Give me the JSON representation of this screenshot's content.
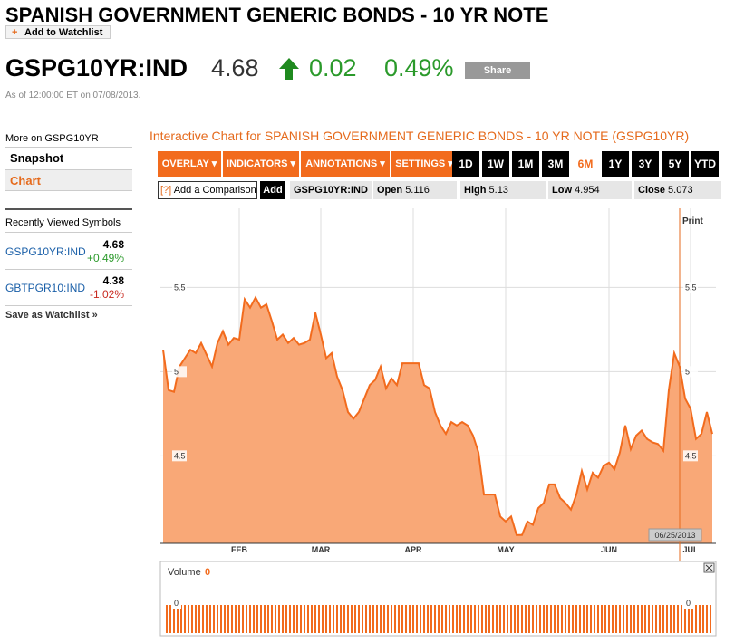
{
  "header": {
    "title": "SPANISH GOVERNMENT GENERIC BONDS - 10 YR NOTE",
    "watchlist_button": "Add to Watchlist",
    "symbol": "GSPG10YR:IND",
    "price": "4.68",
    "change": "0.02",
    "change_pct": "0.49%",
    "share_button": "Share",
    "timestamp": "As of 12:00:00 ET on 07/08/2013."
  },
  "sidebar": {
    "more_title": "More on GSPG10YR",
    "links": [
      "Snapshot",
      "Chart"
    ],
    "recent_title": "Recently Viewed Symbols",
    "recent": [
      {
        "symbol": "GSPG10YR:IND",
        "price": "4.68",
        "change": "+0.49%"
      },
      {
        "symbol": "GBTPGR10:IND",
        "price": "4.38",
        "change": "-1.02%"
      }
    ],
    "save": "Save as Watchlist »"
  },
  "toolbar": {
    "title": "Interactive Chart for SPANISH GOVERNMENT GENERIC BONDS - 10 YR NOTE (GSPG10YR)",
    "menus": [
      "OVERLAY ▾",
      "INDICATORS ▾",
      "ANNOTATIONS ▾",
      "SETTINGS ▾"
    ],
    "ranges": [
      "1D",
      "1W",
      "1M",
      "3M",
      "6M",
      "1Y",
      "3Y",
      "5Y",
      "YTD"
    ],
    "help": "[?]",
    "compare": "Add a Comparison",
    "add": "Add",
    "symbol": "GSPG10YR:IND",
    "stats": [
      {
        "label": "Open",
        "value": "5.116"
      },
      {
        "label": "High",
        "value": "5.13"
      },
      {
        "label": "Low",
        "value": "4.954"
      },
      {
        "label": "Close",
        "value": "5.073"
      }
    ]
  },
  "chart": {
    "type": "area",
    "print": "Print",
    "color": "#f26b1d",
    "fill": "#f9a877",
    "values": [
      5.13,
      4.89,
      4.88,
      5.03,
      5.08,
      5.13,
      5.11,
      5.17,
      5.1,
      5.03,
      5.17,
      5.24,
      5.16,
      5.2,
      5.19,
      5.43,
      5.38,
      5.44,
      5.38,
      5.4,
      5.3,
      5.19,
      5.22,
      5.17,
      5.2,
      5.16,
      5.17,
      5.19,
      5.35,
      5.22,
      5.08,
      5.11,
      4.97,
      4.89,
      4.76,
      4.72,
      4.76,
      4.84,
      4.92,
      4.95,
      5.03,
      4.9,
      4.96,
      4.92,
      5.05,
      5.05,
      5.05,
      5.05,
      4.92,
      4.9,
      4.76,
      4.68,
      4.63,
      4.7,
      4.68,
      4.7,
      4.68,
      4.62,
      4.52,
      4.27,
      4.27,
      4.27,
      4.14,
      4.11,
      4.14,
      4.03,
      4.03,
      4.11,
      4.09,
      4.19,
      4.22,
      4.33,
      4.33,
      4.25,
      4.22,
      4.18,
      4.27,
      4.41,
      4.3,
      4.4,
      4.37,
      4.44,
      4.46,
      4.42,
      4.52,
      4.68,
      4.54,
      4.62,
      4.65,
      4.6,
      4.58,
      4.57,
      4.53,
      4.89,
      5.11,
      5.03,
      4.84,
      4.78,
      4.6,
      4.63,
      4.76,
      4.63
    ],
    "xticks": [
      {
        "value": 14,
        "label": "FEB"
      },
      {
        "value": 29,
        "label": "MAR"
      },
      {
        "value": 46,
        "label": "APR"
      },
      {
        "value": 63,
        "label": "MAY"
      },
      {
        "value": 82,
        "label": "JUN"
      },
      {
        "value": 97,
        "label": "JUL"
      }
    ],
    "ylim": [
      3.98,
      5.97
    ],
    "yticks": [
      5.5,
      5,
      4.5
    ],
    "grid": true,
    "cursor_index": 95,
    "cursor_label": "06/25/2013"
  },
  "volume": {
    "label": "Volume",
    "value": "0",
    "axis_labels": [
      "0",
      "0"
    ]
  }
}
